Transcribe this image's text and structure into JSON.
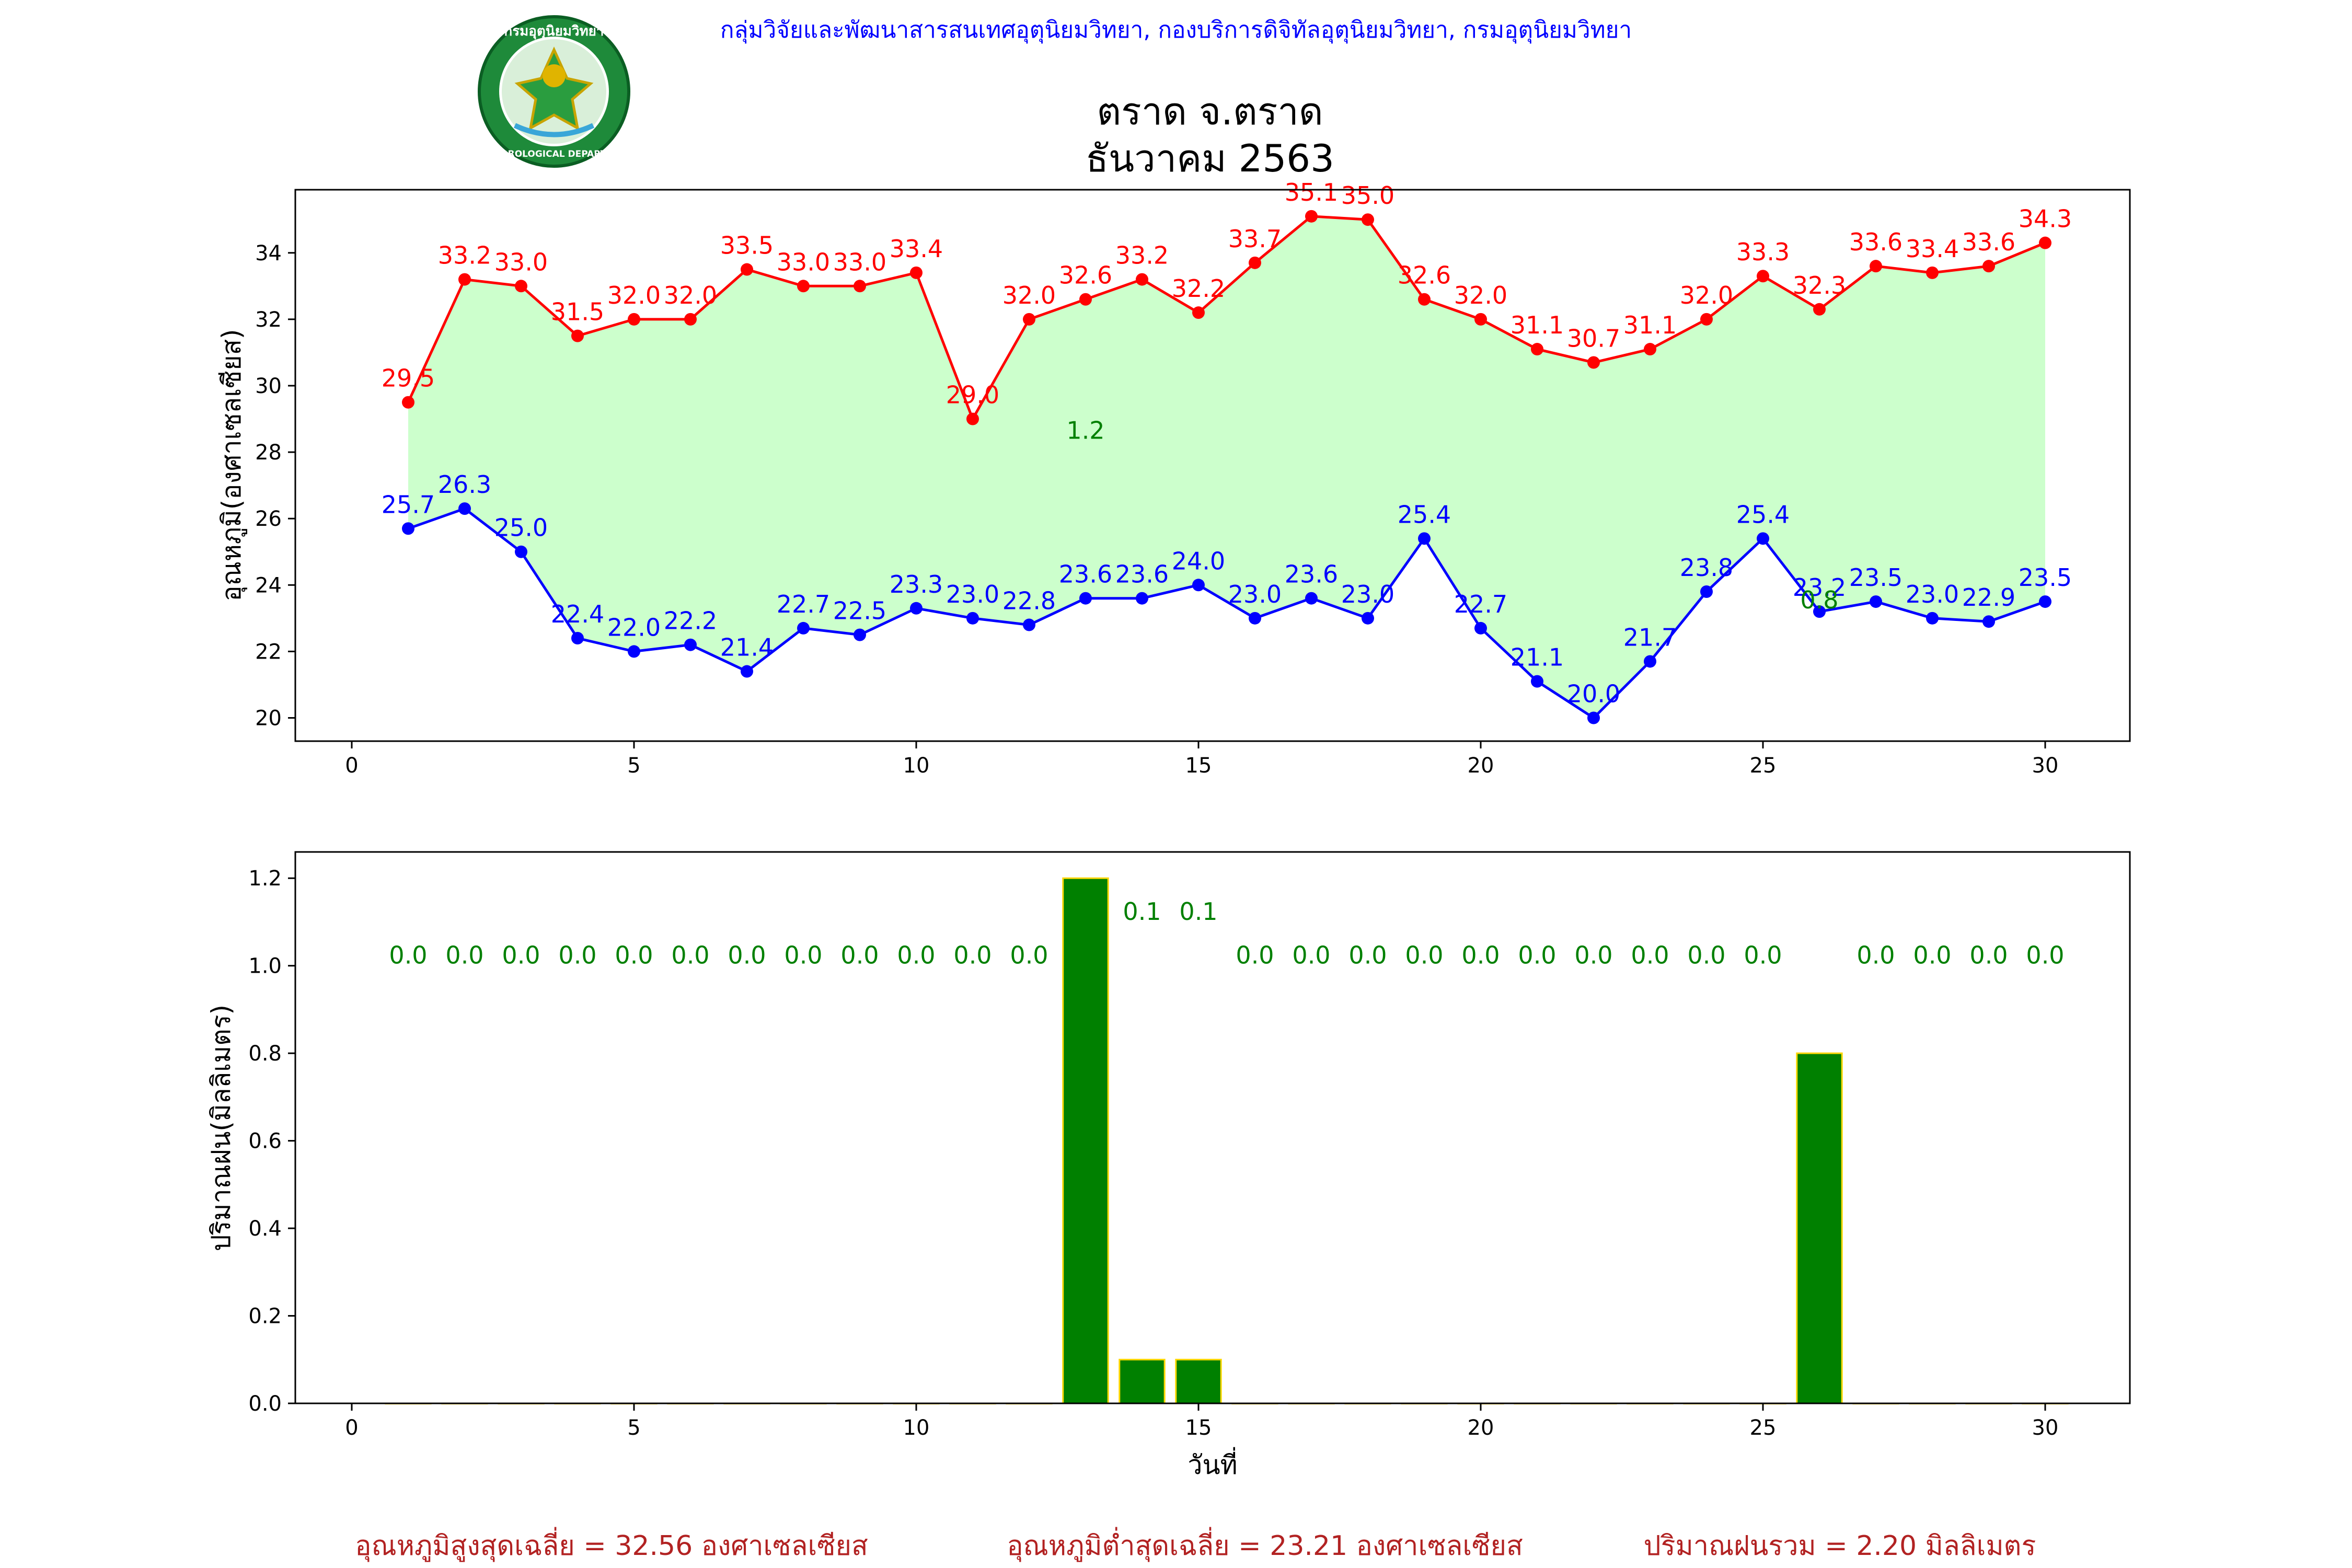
{
  "header": {
    "org_line": "กลุ่มวิจัยและพัฒนาสารสนเทศอุตุนิยมวิทยา, กองบริการดิจิทัลอุตุนิยมวิทยา, กรมอุตุนิยมวิทยา",
    "title_line1": "ตราด จ.ตราด",
    "title_line2": "ธันวาคม 2563",
    "logo_text_top": "กรมอุตุนิยมวิทยา",
    "logo_text_bottom": "METEOROLOGICAL DEPARTMENT"
  },
  "colors": {
    "max_line": "#ff0000",
    "min_line": "#0000ff",
    "fill": "#ccffcc",
    "bar": "#008000",
    "bar_edge": "#ffd700",
    "org_text": "#0000ff",
    "summary_text": "#b22222"
  },
  "chart_data": [
    {
      "type": "line",
      "ylabel": "อุณหภูมิ(องศาเซลเซียส)",
      "xlim": [
        -1,
        31.5
      ],
      "ylim": [
        19.3,
        35.9
      ],
      "xticks": [
        0,
        5,
        10,
        15,
        20,
        25,
        30
      ],
      "yticks": [
        20,
        22,
        24,
        26,
        28,
        30,
        32,
        34
      ],
      "x": [
        1,
        2,
        3,
        4,
        5,
        6,
        7,
        8,
        9,
        10,
        11,
        12,
        13,
        14,
        15,
        16,
        17,
        18,
        19,
        20,
        21,
        22,
        23,
        24,
        25,
        26,
        27,
        28,
        29,
        30
      ],
      "series": [
        {
          "role": "max",
          "values": [
            29.5,
            33.2,
            33.0,
            31.5,
            32.0,
            32.0,
            33.5,
            33.0,
            33.0,
            33.4,
            29.0,
            32.0,
            32.6,
            33.2,
            32.2,
            33.7,
            35.1,
            35.0,
            32.6,
            32.0,
            31.1,
            30.7,
            31.1,
            32.0,
            33.3,
            32.3,
            33.6,
            33.4,
            33.6,
            34.3
          ]
        },
        {
          "role": "min",
          "values": [
            25.7,
            26.3,
            25.0,
            22.4,
            22.0,
            22.2,
            21.4,
            22.7,
            22.5,
            23.3,
            23.0,
            22.8,
            23.6,
            23.6,
            24.0,
            23.0,
            23.6,
            23.0,
            25.4,
            22.7,
            21.1,
            20.0,
            21.7,
            23.8,
            25.4,
            23.2,
            23.5,
            23.0,
            22.9,
            23.5
          ]
        }
      ],
      "annotations": [
        {
          "x": 13,
          "y": 28.4,
          "text": "1.2"
        },
        {
          "x": 26,
          "y": 23.3,
          "text": "0.8"
        }
      ]
    },
    {
      "type": "bar",
      "xlabel": "วันที่",
      "ylabel": "ปริมาณฝน(มิลลิเมตร)",
      "xlim": [
        -1,
        31.5
      ],
      "ylim": [
        0,
        1.26
      ],
      "xticks": [
        0,
        5,
        10,
        15,
        20,
        25,
        30
      ],
      "yticks": [
        0.0,
        0.2,
        0.4,
        0.6,
        0.8,
        1.0,
        1.2
      ],
      "x": [
        1,
        2,
        3,
        4,
        5,
        6,
        7,
        8,
        9,
        10,
        11,
        12,
        13,
        14,
        15,
        16,
        17,
        18,
        19,
        20,
        21,
        22,
        23,
        24,
        25,
        26,
        27,
        28,
        29,
        30
      ],
      "values": [
        0.0,
        0.0,
        0.0,
        0.0,
        0.0,
        0.0,
        0.0,
        0.0,
        0.0,
        0.0,
        0.0,
        0.0,
        1.2,
        0.1,
        0.1,
        0.0,
        0.0,
        0.0,
        0.0,
        0.0,
        0.0,
        0.0,
        0.0,
        0.0,
        0.0,
        0.8,
        0.0,
        0.0,
        0.0,
        0.0
      ],
      "data_labels": [
        {
          "x": 1,
          "text": "0.0"
        },
        {
          "x": 2,
          "text": "0.0"
        },
        {
          "x": 3,
          "text": "0.0"
        },
        {
          "x": 4,
          "text": "0.0"
        },
        {
          "x": 5,
          "text": "0.0"
        },
        {
          "x": 6,
          "text": "0.0"
        },
        {
          "x": 7,
          "text": "0.0"
        },
        {
          "x": 8,
          "text": "0.0"
        },
        {
          "x": 9,
          "text": "0.0"
        },
        {
          "x": 10,
          "text": "0.0"
        },
        {
          "x": 11,
          "text": "0.0"
        },
        {
          "x": 12,
          "text": "0.0"
        },
        {
          "x": 14,
          "text": "0.1"
        },
        {
          "x": 15,
          "text": "0.1"
        },
        {
          "x": 16,
          "text": "0.0"
        },
        {
          "x": 17,
          "text": "0.0"
        },
        {
          "x": 18,
          "text": "0.0"
        },
        {
          "x": 19,
          "text": "0.0"
        },
        {
          "x": 20,
          "text": "0.0"
        },
        {
          "x": 21,
          "text": "0.0"
        },
        {
          "x": 22,
          "text": "0.0"
        },
        {
          "x": 23,
          "text": "0.0"
        },
        {
          "x": 24,
          "text": "0.0"
        },
        {
          "x": 25,
          "text": "0.0"
        },
        {
          "x": 27,
          "text": "0.0"
        },
        {
          "x": 28,
          "text": "0.0"
        },
        {
          "x": 29,
          "text": "0.0"
        },
        {
          "x": 30,
          "text": "0.0"
        }
      ]
    }
  ],
  "summary": {
    "avg_max": "อุณหภูมิสูงสุดเฉลี่ย = 32.56 องศาเซลเซียส",
    "avg_min": "อุณหภูมิต่ำสุดเฉลี่ย = 23.21 องศาเซลเซียส",
    "total_rain": "ปริมาณฝนรวม = 2.20 มิลลิเมตร"
  }
}
